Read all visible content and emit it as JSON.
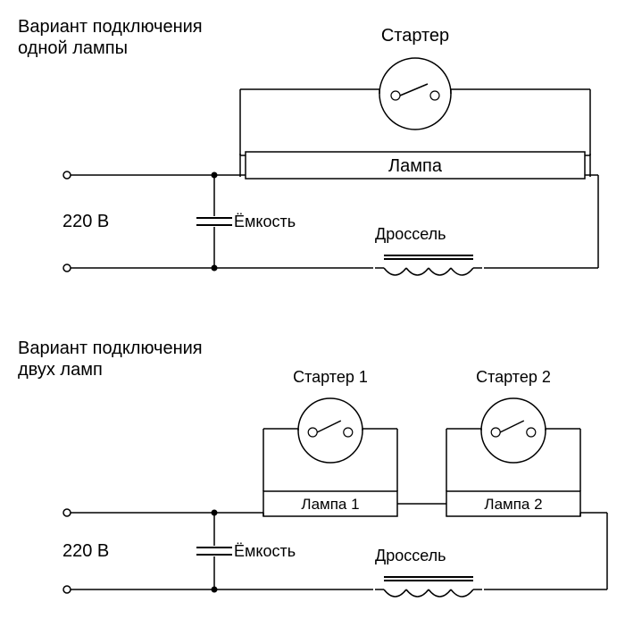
{
  "diagram1": {
    "title_line1": "Вариант подключения",
    "title_line2": "одной лампы",
    "starter_label": "Стартер",
    "lamp_label": "Лампа",
    "voltage_label": "220 В",
    "capacitor_label": "Ёмкость",
    "choke_label": "Дроссель"
  },
  "diagram2": {
    "title_line1": "Вариант подключения",
    "title_line2": "двух ламп",
    "starter1_label": "Стартер 1",
    "starter2_label": "Стартер 2",
    "lamp1_label": "Лампа 1",
    "lamp2_label": "Лампа 2",
    "voltage_label": "220 В",
    "capacitor_label": "Ёмкость",
    "choke_label": "Дроссель"
  },
  "style": {
    "stroke": "#000000",
    "stroke_width": 1.5,
    "background": "#ffffff",
    "title_fontsize": 20,
    "label_fontsize": 20,
    "small_fontsize": 18,
    "starter_radius": 40,
    "node_radius": 3.5,
    "lamp_height": 30,
    "cap_gap": 8,
    "cap_plate": 40
  }
}
